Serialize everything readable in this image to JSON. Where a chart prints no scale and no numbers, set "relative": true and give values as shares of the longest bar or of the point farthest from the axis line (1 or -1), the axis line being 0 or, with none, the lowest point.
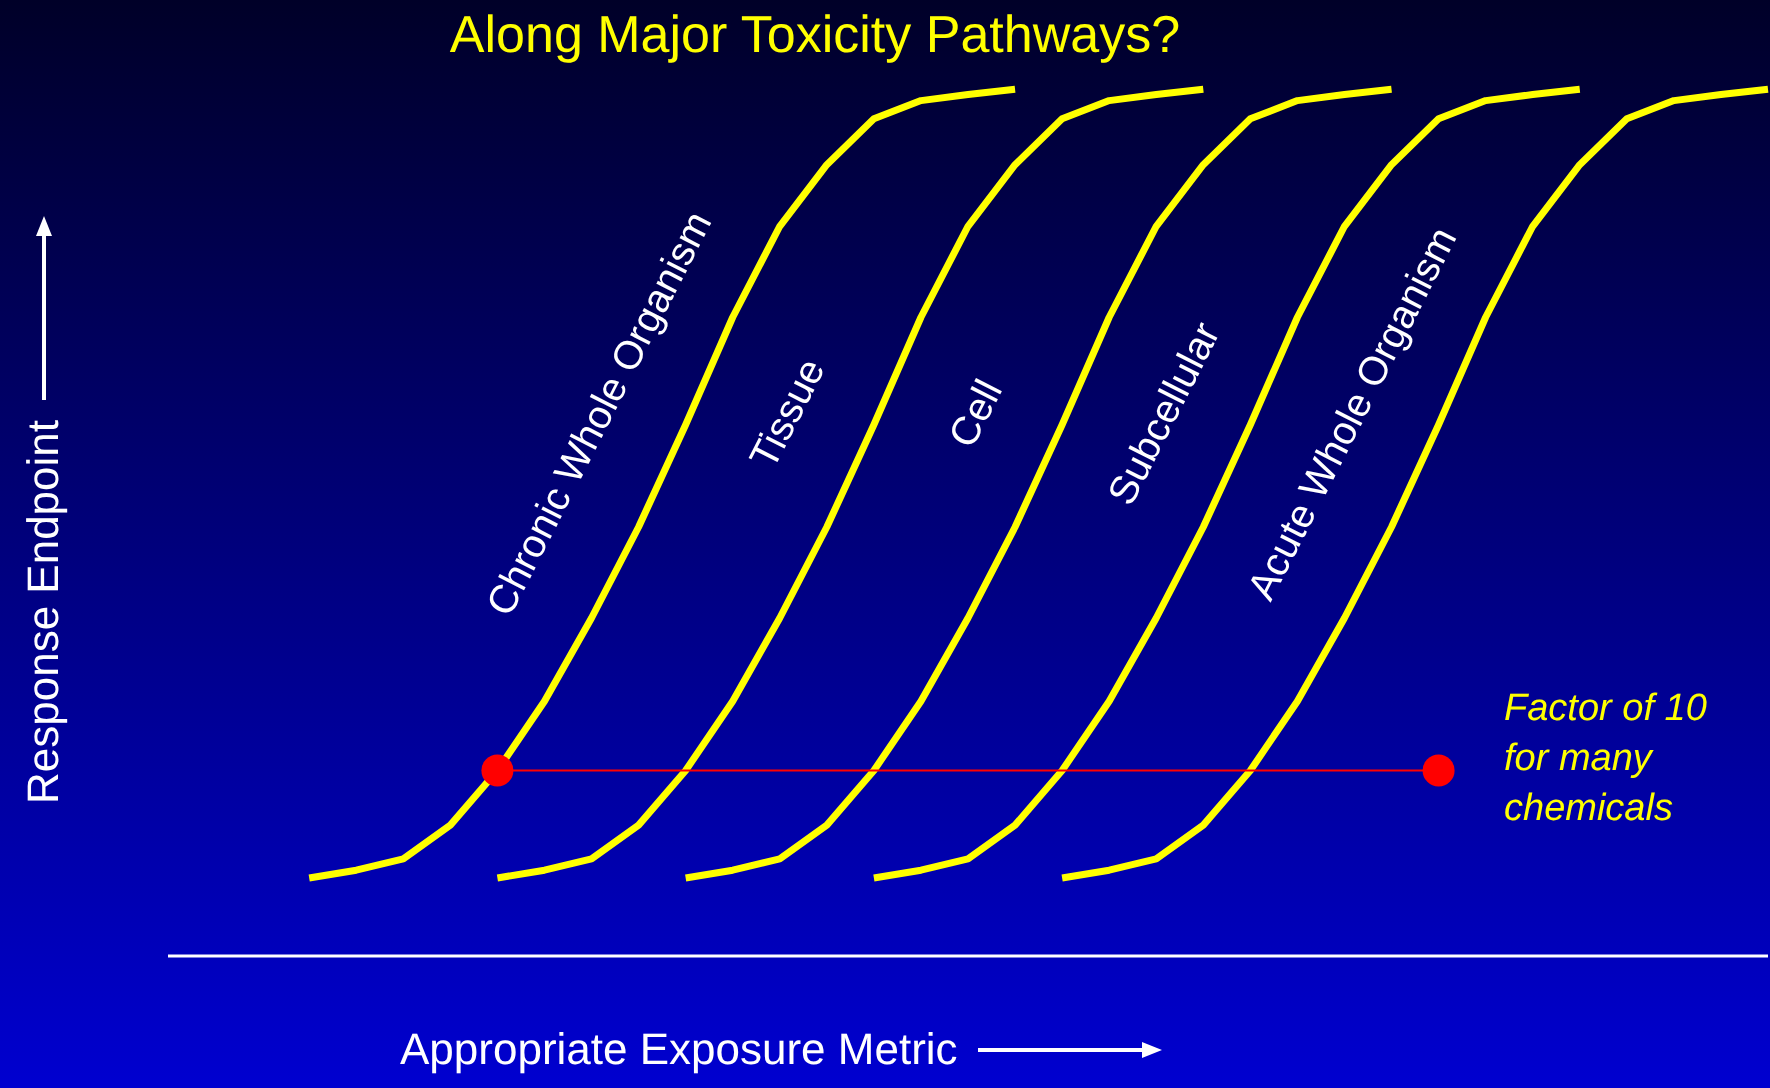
{
  "chart_data": {
    "type": "line",
    "title": "Along Major Toxicity Pathways?",
    "xlabel": "Appropriate Exposure Metric",
    "ylabel": "Response Endpoint",
    "relative": true,
    "marker": "none",
    "legend": false,
    "annotations": [
      "Factor of 10 for many chemicals"
    ],
    "categories": [
      null,
      null,
      null,
      null,
      null,
      null,
      null,
      null,
      null,
      null,
      null,
      null,
      null,
      null,
      null,
      null,
      null,
      null,
      null,
      null,
      null,
      null,
      null,
      null,
      null,
      null,
      null,
      null,
      null,
      null,
      null,
      null,
      null,
      null,
      null
    ],
    "series": [
      {
        "name": "Chronic Whole Organism",
        "color": "#ffff00",
        "values": [
          null,
          null,
          null,
          0.09,
          0.099,
          0.112,
          0.151,
          0.214,
          0.294,
          0.39,
          0.495,
          0.613,
          0.737,
          0.842,
          0.913,
          0.966,
          0.987,
          0.994,
          1,
          null,
          null,
          null,
          null,
          null,
          null,
          null,
          null,
          null,
          null,
          null,
          null,
          null,
          null,
          null,
          null
        ]
      },
      {
        "name": "Tissue",
        "color": "#ffff00",
        "values": [
          null,
          null,
          null,
          null,
          null,
          null,
          null,
          0.09,
          0.099,
          0.112,
          0.151,
          0.214,
          0.294,
          0.39,
          0.495,
          0.613,
          0.737,
          0.842,
          0.913,
          0.966,
          0.987,
          0.994,
          1,
          null,
          null,
          null,
          null,
          null,
          null,
          null,
          null,
          null,
          null,
          null,
          null
        ]
      },
      {
        "name": "Cell",
        "color": "#ffff00",
        "values": [
          null,
          null,
          null,
          null,
          null,
          null,
          null,
          null,
          null,
          null,
          null,
          0.09,
          0.099,
          0.112,
          0.151,
          0.214,
          0.294,
          0.39,
          0.495,
          0.613,
          0.737,
          0.842,
          0.913,
          0.966,
          0.987,
          0.994,
          1,
          null,
          null,
          null,
          null,
          null,
          null,
          null,
          null
        ]
      },
      {
        "name": "Subcellular",
        "color": "#ffff00",
        "values": [
          null,
          null,
          null,
          null,
          null,
          null,
          null,
          null,
          null,
          null,
          null,
          null,
          null,
          null,
          null,
          0.09,
          0.099,
          0.112,
          0.151,
          0.214,
          0.294,
          0.39,
          0.495,
          0.613,
          0.737,
          0.842,
          0.913,
          0.966,
          0.987,
          0.994,
          1,
          null,
          null,
          null,
          null
        ]
      },
      {
        "name": "Acute Whole Organism",
        "color": "#ffff00",
        "values": [
          null,
          null,
          null,
          null,
          null,
          null,
          null,
          null,
          null,
          null,
          null,
          null,
          null,
          null,
          null,
          null,
          null,
          null,
          null,
          0.09,
          0.099,
          0.112,
          0.151,
          0.214,
          0.294,
          0.39,
          0.495,
          0.613,
          0.737,
          0.842,
          0.913,
          0.966,
          0.987,
          0.994,
          1
        ]
      },
      {
        "color": "#ff0000",
        "marker": "circle",
        "values": [
          null,
          null,
          null,
          null,
          null,
          null,
          null,
          0.214,
          null,
          null,
          null,
          null,
          null,
          null,
          null,
          null,
          null,
          null,
          null,
          null,
          null,
          null,
          null,
          null,
          null,
          null,
          null,
          0.214,
          null,
          null,
          null,
          null,
          null,
          null,
          null
        ]
      }
    ]
  }
}
